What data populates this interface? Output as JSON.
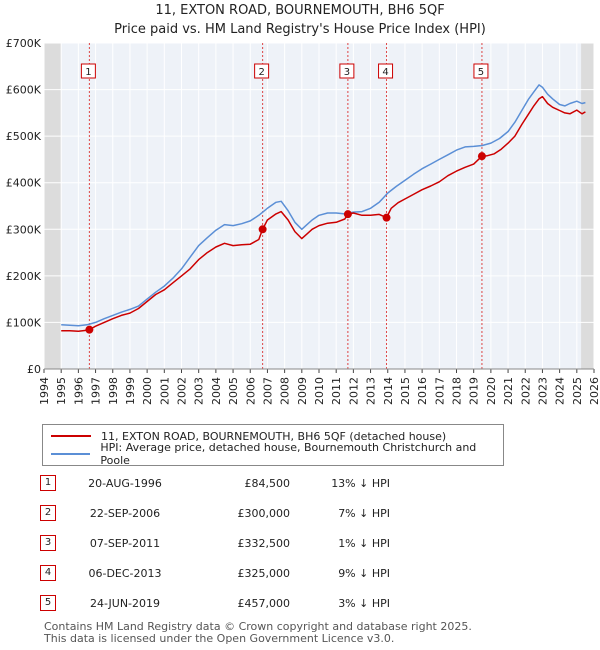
{
  "title_line1": "11, EXTON ROAD, BOURNEMOUTH, BH6 5QF",
  "title_line2": "Price paid vs. HM Land Registry's House Price Index (HPI)",
  "chart_data": {
    "type": "line",
    "xlim": [
      1994,
      2026
    ],
    "ylim": [
      0,
      700000
    ],
    "y_ticks": [
      0,
      100000,
      200000,
      300000,
      400000,
      500000,
      600000,
      700000
    ],
    "y_tick_labels": [
      "£0",
      "£100K",
      "£200K",
      "£300K",
      "£400K",
      "£500K",
      "£600K",
      "£700K"
    ],
    "x_ticks": [
      1994,
      1995,
      1996,
      1997,
      1998,
      1999,
      2000,
      2001,
      2002,
      2003,
      2004,
      2005,
      2006,
      2007,
      2008,
      2009,
      2010,
      2011,
      2012,
      2013,
      2014,
      2015,
      2016,
      2017,
      2018,
      2019,
      2020,
      2021,
      2022,
      2023,
      2024,
      2025,
      2026
    ],
    "x_tick_labels": [
      "1994",
      "1995",
      "1996",
      "1997",
      "1998",
      "1999",
      "2000",
      "2001",
      "2002",
      "2003",
      "2004",
      "2005",
      "2006",
      "2007",
      "2008",
      "2009",
      "2010",
      "2011",
      "2012",
      "2013",
      "2014",
      "2015",
      "2016",
      "2017",
      "2018",
      "2019",
      "2020",
      "2021",
      "2022",
      "2023",
      "2024",
      "2025",
      "2026"
    ],
    "shaded_regions": [
      [
        1994,
        1995
      ],
      [
        2025.25,
        2026
      ]
    ],
    "series": [
      {
        "name": "11, EXTON ROAD, BOURNEMOUTH, BH6 5QF (detached house)",
        "color": "#cc0000",
        "x": [
          1995.0,
          1995.5,
          1996.0,
          1996.5,
          1996.64,
          1997.0,
          1997.5,
          1998.0,
          1998.5,
          1999.0,
          1999.5,
          2000.0,
          2000.5,
          2001.0,
          2001.5,
          2002.0,
          2002.5,
          2003.0,
          2003.5,
          2004.0,
          2004.5,
          2005.0,
          2005.5,
          2006.0,
          2006.5,
          2006.72,
          2007.0,
          2007.5,
          2007.8,
          2008.2,
          2008.6,
          2009.0,
          2009.3,
          2009.6,
          2010.0,
          2010.5,
          2011.0,
          2011.5,
          2011.68,
          2012.0,
          2012.5,
          2013.0,
          2013.5,
          2013.93,
          2014.2,
          2014.6,
          2015.0,
          2015.5,
          2016.0,
          2016.5,
          2017.0,
          2017.5,
          2018.0,
          2018.5,
          2019.0,
          2019.48,
          2019.8,
          2020.2,
          2020.6,
          2021.0,
          2021.4,
          2021.8,
          2022.2,
          2022.5,
          2022.8,
          2023.0,
          2023.3,
          2023.6,
          2024.0,
          2024.3,
          2024.6,
          2025.0,
          2025.3,
          2025.5
        ],
        "y": [
          82000,
          82000,
          81000,
          83000,
          84500,
          92000,
          100000,
          108000,
          115000,
          120000,
          130000,
          145000,
          160000,
          170000,
          185000,
          200000,
          215000,
          235000,
          250000,
          262000,
          270000,
          265000,
          267000,
          268000,
          278000,
          300000,
          320000,
          333000,
          338000,
          320000,
          295000,
          280000,
          290000,
          300000,
          308000,
          313000,
          315000,
          322000,
          332500,
          335000,
          330000,
          330000,
          332000,
          325000,
          345000,
          357000,
          365000,
          375000,
          385000,
          393000,
          402000,
          415000,
          425000,
          433000,
          440000,
          457000,
          458000,
          462000,
          472000,
          485000,
          500000,
          525000,
          548000,
          565000,
          580000,
          585000,
          570000,
          562000,
          555000,
          550000,
          548000,
          556000,
          548000,
          552000
        ]
      },
      {
        "name": "HPI: Average price, detached house, Bournemouth Christchurch and Poole",
        "color": "#5b8fd6",
        "x": [
          1995.0,
          1995.5,
          1996.0,
          1996.5,
          1997.0,
          1997.5,
          1998.0,
          1998.5,
          1999.0,
          1999.5,
          2000.0,
          2000.5,
          2001.0,
          2001.5,
          2002.0,
          2002.5,
          2003.0,
          2003.5,
          2004.0,
          2004.5,
          2005.0,
          2005.5,
          2006.0,
          2006.5,
          2007.0,
          2007.5,
          2007.8,
          2008.2,
          2008.6,
          2009.0,
          2009.3,
          2009.6,
          2010.0,
          2010.5,
          2011.0,
          2011.5,
          2012.0,
          2012.5,
          2013.0,
          2013.5,
          2014.0,
          2014.5,
          2015.0,
          2015.5,
          2016.0,
          2016.5,
          2017.0,
          2017.5,
          2018.0,
          2018.5,
          2019.0,
          2019.5,
          2020.0,
          2020.5,
          2021.0,
          2021.4,
          2021.8,
          2022.2,
          2022.5,
          2022.8,
          2023.0,
          2023.3,
          2023.6,
          2024.0,
          2024.3,
          2024.6,
          2025.0,
          2025.3,
          2025.5
        ],
        "y": [
          95000,
          94000,
          93000,
          95000,
          100000,
          108000,
          115000,
          122000,
          128000,
          135000,
          150000,
          165000,
          178000,
          195000,
          215000,
          240000,
          265000,
          282000,
          298000,
          310000,
          308000,
          312000,
          318000,
          330000,
          345000,
          358000,
          360000,
          340000,
          315000,
          300000,
          310000,
          320000,
          330000,
          335000,
          335000,
          333000,
          337000,
          338000,
          345000,
          358000,
          378000,
          392000,
          405000,
          418000,
          430000,
          440000,
          450000,
          460000,
          470000,
          477000,
          478000,
          480000,
          485000,
          495000,
          510000,
          530000,
          555000,
          580000,
          595000,
          610000,
          605000,
          590000,
          580000,
          568000,
          565000,
          570000,
          575000,
          570000,
          572000
        ]
      }
    ],
    "sales": [
      {
        "num": "1",
        "x": 1996.64,
        "price": 84500
      },
      {
        "num": "2",
        "x": 2006.72,
        "price": 300000
      },
      {
        "num": "3",
        "x": 2011.68,
        "price": 332500
      },
      {
        "num": "4",
        "x": 2013.93,
        "price": 325000
      },
      {
        "num": "5",
        "x": 2019.48,
        "price": 457000
      }
    ]
  },
  "legend": {
    "red_label": "11, EXTON ROAD, BOURNEMOUTH, BH6 5QF (detached house)",
    "blue_label": "HPI: Average price, detached house, Bournemouth Christchurch and Poole"
  },
  "sales_table": [
    {
      "num": "1",
      "date": "20-AUG-1996",
      "price": "£84,500",
      "hpi": "13% ↓ HPI"
    },
    {
      "num": "2",
      "date": "22-SEP-2006",
      "price": "£300,000",
      "hpi": "7% ↓ HPI"
    },
    {
      "num": "3",
      "date": "07-SEP-2011",
      "price": "£332,500",
      "hpi": "1% ↓ HPI"
    },
    {
      "num": "4",
      "date": "06-DEC-2013",
      "price": "£325,000",
      "hpi": "9% ↓ HPI"
    },
    {
      "num": "5",
      "date": "24-JUN-2019",
      "price": "£457,000",
      "hpi": "3% ↓ HPI"
    }
  ],
  "footer_line1": "Contains HM Land Registry data © Crown copyright and database right 2025.",
  "footer_line2": "This data is licensed under the Open Government Licence v3.0."
}
